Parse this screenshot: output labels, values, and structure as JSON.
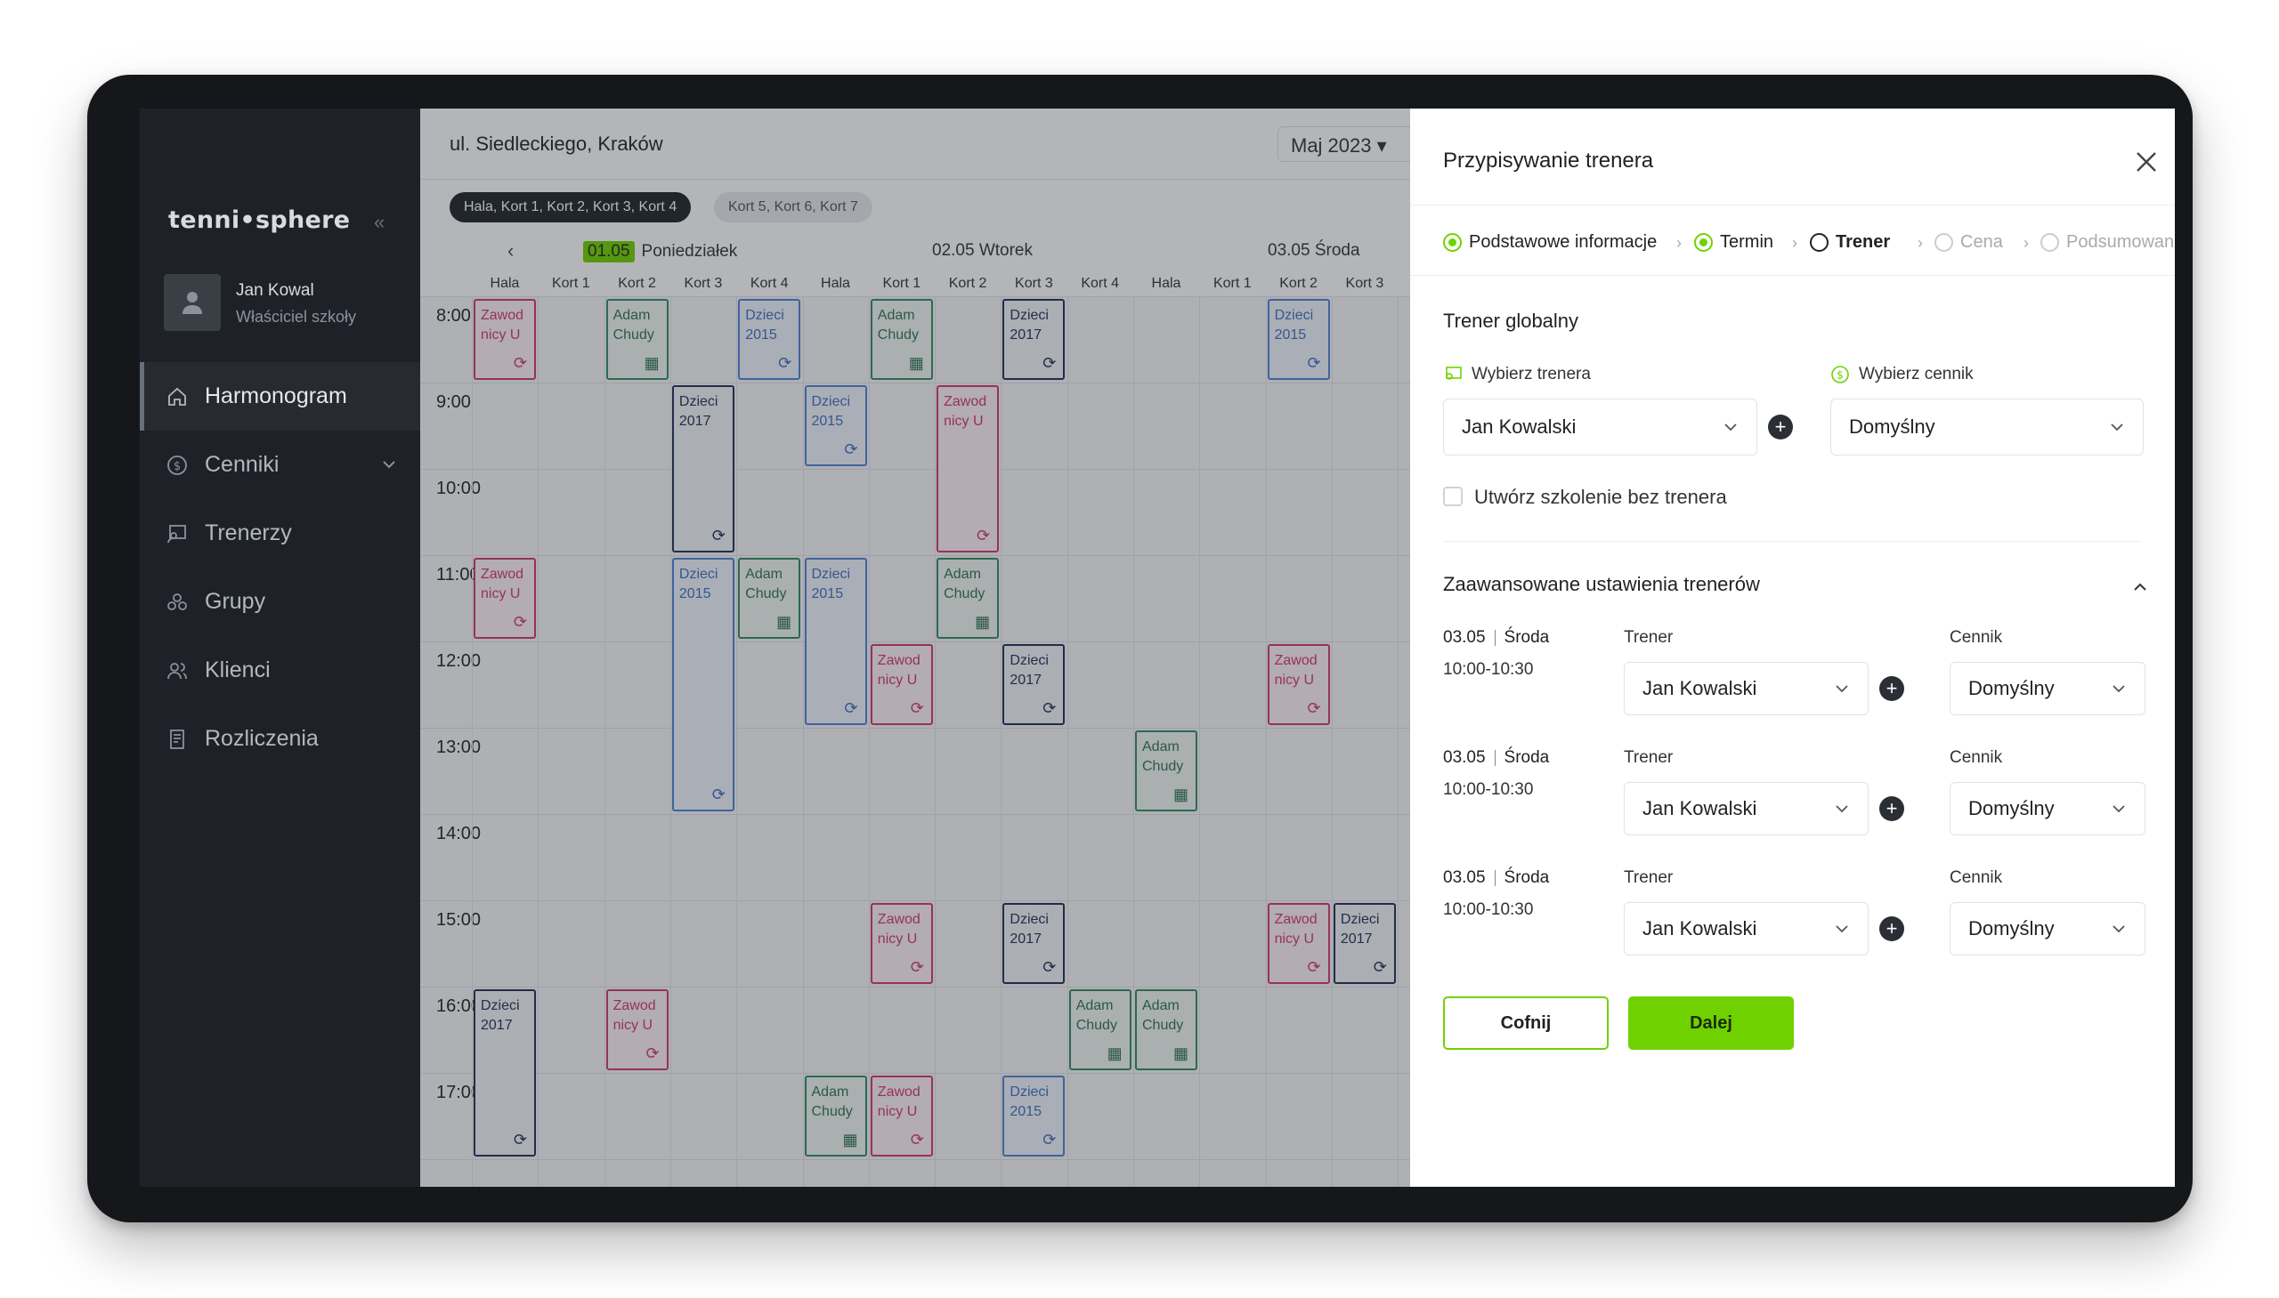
{
  "sidebar": {
    "logo": "tenni•sphere",
    "user_name": "Jan Kowal",
    "user_role": "Właściciel szkoły",
    "items": [
      {
        "label": "Harmonogram",
        "icon": "home-icon"
      },
      {
        "label": "Cenniki",
        "icon": "dollar-icon"
      },
      {
        "label": "Trenerzy",
        "icon": "trainer-icon"
      },
      {
        "label": "Grupy",
        "icon": "groups-icon"
      },
      {
        "label": "Klienci",
        "icon": "clients-icon"
      },
      {
        "label": "Rozliczenia",
        "icon": "invoice-icon"
      }
    ]
  },
  "schedule": {
    "location": "ul. Siedleckiego, Kraków",
    "month": "Maj 2023",
    "chips": [
      "Hala, Kort 1, Kort 2, Kort 3, Kort 4",
      "Kort 5, Kort 6, Kort 7"
    ],
    "days": [
      {
        "date": "01.05",
        "name": "Poniedziałek"
      },
      {
        "date": "02.05",
        "name": "Wtorek"
      },
      {
        "date": "03.05",
        "name": "Środa"
      }
    ],
    "columns": [
      "Hala",
      "Kort 1",
      "Kort 2",
      "Kort 3",
      "Kort 4",
      "Hala",
      "Kort 1",
      "Kort 2",
      "Kort 3",
      "Kort 4",
      "Hala",
      "Kort 1",
      "Kort 2",
      "Kort 3"
    ],
    "times": [
      "8:00",
      "9:00",
      "10:00",
      "11:00",
      "12:00",
      "13:00",
      "14:00",
      "15:00",
      "16:00",
      "17:00"
    ],
    "events": [
      {
        "col": 0,
        "start": 0,
        "dur": 1,
        "type": "red",
        "l1": "Zawod",
        "l2": "nicy U"
      },
      {
        "col": 2,
        "start": 0,
        "dur": 1,
        "type": "green",
        "l1": "Adam",
        "l2": "Chudy"
      },
      {
        "col": 4,
        "start": 0,
        "dur": 1,
        "type": "blue",
        "l1": "Dzieci",
        "l2": "2015"
      },
      {
        "col": 6,
        "start": 0,
        "dur": 1,
        "type": "green",
        "l1": "Adam",
        "l2": "Chudy"
      },
      {
        "col": 8,
        "start": 0,
        "dur": 1,
        "type": "navy",
        "l1": "Dzieci",
        "l2": "2017"
      },
      {
        "col": 12,
        "start": 0,
        "dur": 1,
        "type": "blue",
        "l1": "Dzieci",
        "l2": "2015"
      },
      {
        "col": 3,
        "start": 1,
        "dur": 2,
        "type": "navy",
        "l1": "Dzieci",
        "l2": "2017"
      },
      {
        "col": 5,
        "start": 1,
        "dur": 1,
        "type": "blue",
        "l1": "Dzieci",
        "l2": "2015"
      },
      {
        "col": 7,
        "start": 1,
        "dur": 2,
        "type": "red",
        "l1": "Zawod",
        "l2": "nicy U"
      },
      {
        "col": 0,
        "start": 3,
        "dur": 1,
        "type": "red",
        "l1": "Zawod",
        "l2": "nicy U"
      },
      {
        "col": 3,
        "start": 3,
        "dur": 3,
        "type": "blue",
        "l1": "Dzieci",
        "l2": "2015"
      },
      {
        "col": 4,
        "start": 3,
        "dur": 1,
        "type": "green",
        "l1": "Adam",
        "l2": "Chudy"
      },
      {
        "col": 5,
        "start": 3,
        "dur": 2,
        "type": "blue",
        "l1": "Dzieci",
        "l2": "2015"
      },
      {
        "col": 7,
        "start": 3,
        "dur": 1,
        "type": "green",
        "l1": "Adam",
        "l2": "Chudy"
      },
      {
        "col": 6,
        "start": 4,
        "dur": 1,
        "type": "red",
        "l1": "Zawod",
        "l2": "nicy U"
      },
      {
        "col": 8,
        "start": 4,
        "dur": 1,
        "type": "navy",
        "l1": "Dzieci",
        "l2": "2017"
      },
      {
        "col": 12,
        "start": 4,
        "dur": 1,
        "type": "red",
        "l1": "Zawod",
        "l2": "nicy U"
      },
      {
        "col": 10,
        "start": 5,
        "dur": 1,
        "type": "green",
        "l1": "Adam",
        "l2": "Chudy"
      },
      {
        "col": 6,
        "start": 7,
        "dur": 1,
        "type": "red",
        "l1": "Zawod",
        "l2": "nicy U"
      },
      {
        "col": 8,
        "start": 7,
        "dur": 1,
        "type": "navy",
        "l1": "Dzieci",
        "l2": "2017"
      },
      {
        "col": 12,
        "start": 7,
        "dur": 1,
        "type": "red",
        "l1": "Zawod",
        "l2": "nicy U"
      },
      {
        "col": 13,
        "start": 7,
        "dur": 1,
        "type": "navy",
        "l1": "Dzieci",
        "l2": "2017"
      },
      {
        "col": 0,
        "start": 8,
        "dur": 2,
        "type": "navy",
        "l1": "Dzieci",
        "l2": "2017"
      },
      {
        "col": 2,
        "start": 8,
        "dur": 1,
        "type": "red",
        "l1": "Zawod",
        "l2": "nicy U"
      },
      {
        "col": 9,
        "start": 8,
        "dur": 1,
        "type": "green",
        "l1": "Adam",
        "l2": "Chudy"
      },
      {
        "col": 10,
        "start": 8,
        "dur": 1,
        "type": "green",
        "l1": "Adam",
        "l2": "Chudy"
      },
      {
        "col": 5,
        "start": 9,
        "dur": 1,
        "type": "green",
        "l1": "Adam",
        "l2": "Chudy"
      },
      {
        "col": 6,
        "start": 9,
        "dur": 1,
        "type": "red",
        "l1": "Zawod",
        "l2": "nicy U"
      },
      {
        "col": 8,
        "start": 9,
        "dur": 1,
        "type": "blue",
        "l1": "Dzieci",
        "l2": "2015"
      }
    ]
  },
  "drawer": {
    "title": "Przypisywanie trenera",
    "steps": [
      {
        "label": "Podstawowe informacje",
        "state": "done"
      },
      {
        "label": "Termin",
        "state": "done"
      },
      {
        "label": "Trener",
        "state": "current"
      },
      {
        "label": "Cena",
        "state": "todo"
      },
      {
        "label": "Podsumowanie",
        "state": "todo"
      }
    ],
    "global_title": "Trener globalny",
    "choose_trainer_label": "Wybierz trenera",
    "choose_pricelist_label": "Wybierz cennik",
    "trainer_value": "Jan Kowalski",
    "pricelist_value": "Domyślny",
    "no_trainer_label": "Utwórz szkolenie bez trenera",
    "advanced_title": "Zaawansowane ustawienia trenerów",
    "rows": [
      {
        "date": "03.05",
        "day": "Środa",
        "time": "10:00-10:30",
        "trainer_label": "Trener",
        "trainer": "Jan Kowalski",
        "pricelist_label": "Cennik",
        "pricelist": "Domyślny"
      },
      {
        "date": "03.05",
        "day": "Środa",
        "time": "10:00-10:30",
        "trainer_label": "Trener",
        "trainer": "Jan Kowalski",
        "pricelist_label": "Cennik",
        "pricelist": "Domyślny"
      },
      {
        "date": "03.05",
        "day": "Środa",
        "time": "10:00-10:30",
        "trainer_label": "Trener",
        "trainer": "Jan Kowalski",
        "pricelist_label": "Cennik",
        "pricelist": "Domyślny"
      }
    ],
    "back_label": "Cofnij",
    "next_label": "Dalej"
  },
  "colors": {
    "accent": "#6fd200",
    "sidebar": "#1e2228"
  }
}
